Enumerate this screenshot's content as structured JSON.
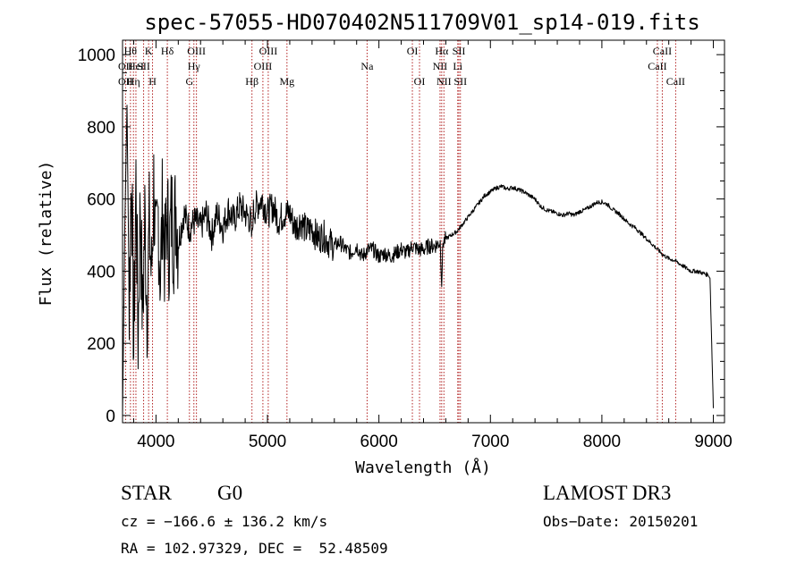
{
  "chart_data": {
    "type": "line",
    "title": "spec-57055-HD070402N511709V01_sp14-019.fits",
    "xlabel": "Wavelength (Å)",
    "ylabel": "Flux (relative)",
    "xlim": [
      3700,
      9100
    ],
    "ylim": [
      -20,
      1040
    ],
    "xticks": [
      4000,
      5000,
      6000,
      7000,
      8000,
      9000
    ],
    "yticks": [
      0,
      200,
      400,
      600,
      800,
      1000
    ],
    "series": [
      {
        "name": "flux",
        "x": [
          3700,
          3720,
          3740,
          3760,
          3780,
          3800,
          3820,
          3840,
          3860,
          3880,
          3900,
          3920,
          3940,
          3960,
          3980,
          4000,
          4020,
          4040,
          4060,
          4080,
          4100,
          4120,
          4140,
          4160,
          4180,
          4200,
          4250,
          4300,
          4350,
          4400,
          4450,
          4500,
          4550,
          4600,
          4650,
          4700,
          4750,
          4800,
          4850,
          4861,
          4870,
          4900,
          4950,
          5000,
          5050,
          5100,
          5150,
          5200,
          5250,
          5300,
          5350,
          5400,
          5450,
          5500,
          5550,
          5600,
          5650,
          5700,
          5750,
          5800,
          5850,
          5900,
          5950,
          6000,
          6050,
          6100,
          6150,
          6200,
          6250,
          6300,
          6350,
          6400,
          6450,
          6500,
          6550,
          6563,
          6575,
          6600,
          6650,
          6700,
          6750,
          6800,
          6850,
          6900,
          6950,
          7000,
          7050,
          7100,
          7150,
          7200,
          7250,
          7300,
          7350,
          7400,
          7450,
          7500,
          7550,
          7600,
          7650,
          7700,
          7750,
          7800,
          7850,
          7900,
          7950,
          8000,
          8050,
          8100,
          8150,
          8200,
          8250,
          8300,
          8350,
          8400,
          8450,
          8500,
          8550,
          8600,
          8650,
          8700,
          8750,
          8800,
          8850,
          8900,
          8950,
          8970,
          8985,
          9000
        ],
        "y": [
          0,
          520,
          860,
          300,
          700,
          180,
          650,
          220,
          600,
          260,
          550,
          300,
          520,
          380,
          640,
          420,
          560,
          380,
          600,
          420,
          560,
          460,
          560,
          500,
          580,
          480,
          560,
          520,
          540,
          520,
          560,
          500,
          560,
          520,
          570,
          540,
          580,
          560,
          540,
          480,
          560,
          580,
          600,
          560,
          580,
          540,
          560,
          560,
          520,
          540,
          510,
          520,
          490,
          500,
          480,
          470,
          480,
          460,
          450,
          470,
          440,
          460,
          460,
          440,
          450,
          440,
          450,
          460,
          450,
          470,
          460,
          460,
          470,
          470,
          480,
          370,
          480,
          490,
          500,
          510,
          530,
          550,
          570,
          590,
          610,
          620,
          630,
          635,
          628,
          632,
          626,
          620,
          610,
          600,
          580,
          570,
          565,
          560,
          555,
          560,
          555,
          565,
          570,
          580,
          590,
          592,
          585,
          570,
          560,
          545,
          530,
          520,
          505,
          490,
          475,
          460,
          445,
          435,
          430,
          420,
          410,
          400,
          400,
          395,
          390,
          380,
          200,
          20
        ]
      }
    ],
    "emission_lines": [
      {
        "wavelength": 3727,
        "label": "OII",
        "row": 2
      },
      {
        "wavelength": 3727,
        "label": "OII",
        "row": 3
      },
      {
        "wavelength": 3771,
        "label": "Hθ",
        "row": 1
      },
      {
        "wavelength": 3798,
        "label": "Hη",
        "row": 3
      },
      {
        "wavelength": 3820,
        "label": "HeI",
        "row": 2
      },
      {
        "wavelength": 3889,
        "label": "SII",
        "row": 2
      },
      {
        "wavelength": 3934,
        "label": "K",
        "row": 1
      },
      {
        "wavelength": 3969,
        "label": "H",
        "row": 3
      },
      {
        "wavelength": 4102,
        "label": "Hδ",
        "row": 1
      },
      {
        "wavelength": 4300,
        "label": "G",
        "row": 3
      },
      {
        "wavelength": 4340,
        "label": "Hγ",
        "row": 2
      },
      {
        "wavelength": 4363,
        "label": "OIII",
        "row": 1
      },
      {
        "wavelength": 4861,
        "label": "Hβ",
        "row": 3
      },
      {
        "wavelength": 4959,
        "label": "OIII",
        "row": 2
      },
      {
        "wavelength": 5007,
        "label": "OIII",
        "row": 1
      },
      {
        "wavelength": 5175,
        "label": "Mg",
        "row": 3
      },
      {
        "wavelength": 5894,
        "label": "Na",
        "row": 2
      },
      {
        "wavelength": 6300,
        "label": "OI",
        "row": 1
      },
      {
        "wavelength": 6364,
        "label": "OI",
        "row": 3
      },
      {
        "wavelength": 6548,
        "label": "NII",
        "row": 2
      },
      {
        "wavelength": 6563,
        "label": "Hα",
        "row": 1
      },
      {
        "wavelength": 6583,
        "label": "NII",
        "row": 3
      },
      {
        "wavelength": 6707,
        "label": "Li",
        "row": 2
      },
      {
        "wavelength": 6717,
        "label": "SII",
        "row": 1
      },
      {
        "wavelength": 6731,
        "label": "SII",
        "row": 3
      },
      {
        "wavelength": 8498,
        "label": "CaII",
        "row": 2
      },
      {
        "wavelength": 8542,
        "label": "CaII",
        "row": 1
      },
      {
        "wavelength": 8662,
        "label": "CaII",
        "row": 3
      }
    ]
  },
  "info": {
    "class": "STAR",
    "subclass": "G0",
    "survey": "LAMOST DR3",
    "cz": "cz = −166.6 ± 136.2 km/s",
    "obs_date": "Obs−Date: 20150201",
    "radec": "RA = 102.97329, DEC =  52.48509"
  },
  "colors": {
    "line": "#000000",
    "marker": "#b22222"
  }
}
